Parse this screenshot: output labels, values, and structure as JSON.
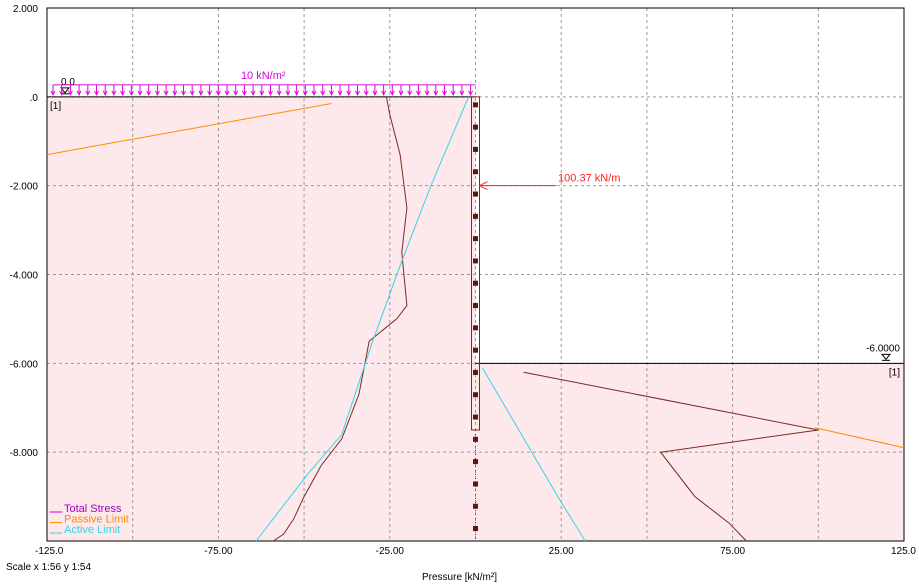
{
  "chart_data": {
    "type": "line",
    "xlabel": "Pressure [kN/m²]",
    "xlim": [
      -125,
      125
    ],
    "ylim": [
      -10,
      2
    ],
    "x_ticks": [
      {
        "v": -125,
        "label": "-125.0"
      },
      {
        "v": -75,
        "label": "-75.00"
      },
      {
        "v": -25,
        "label": "-25.00"
      },
      {
        "v": 25,
        "label": "25.00"
      },
      {
        "v": 75,
        "label": "75.00"
      },
      {
        "v": 125,
        "label": "125.0"
      }
    ],
    "x_grid": [
      -100,
      -75,
      -50,
      -25,
      0,
      25,
      50,
      75,
      100
    ],
    "y_ticks": [
      {
        "v": 2,
        "label": "2.000"
      },
      {
        "v": 0,
        "label": ".0"
      },
      {
        "v": -2,
        "label": "-2.000"
      },
      {
        "v": -4,
        "label": "-4.000"
      },
      {
        "v": -6,
        "label": "-6.000"
      },
      {
        "v": -8,
        "label": "-8.000"
      }
    ],
    "y_grid": [
      0,
      -2,
      -4,
      -6,
      -8
    ],
    "grid": true,
    "legend_position": "bottom-left",
    "colors": {
      "fill": "#fde8ec",
      "total_stress": "#7b2c1e",
      "passive": "#ff8c00",
      "active": "#33d6e8",
      "surcharge": "#e000e0",
      "force": "#ff2020",
      "wall": "#7b2c1e",
      "wall_dot": "#5a1a0a",
      "grid": "#9a9a9a"
    },
    "series": [
      {
        "name": "Total Stress",
        "color": "#7b2c1e",
        "points": [
          [
            -26,
            0
          ],
          [
            -25,
            -0.4
          ],
          [
            -22,
            -1.3
          ],
          [
            -20,
            -2.5
          ],
          [
            -21.5,
            -3.5
          ],
          [
            -20,
            -4.7
          ],
          [
            -23,
            -5.0
          ],
          [
            -31,
            -5.5
          ],
          [
            -34,
            -6.7
          ],
          [
            -39,
            -7.7
          ],
          [
            -45,
            -8.3
          ],
          [
            -50,
            -9.0
          ],
          [
            -53,
            -9.5
          ],
          [
            -56,
            -9.85
          ],
          [
            -59,
            -10
          ],
          null,
          [
            14,
            -6.2
          ],
          [
            100,
            -7.5
          ],
          [
            54,
            -8
          ],
          [
            64,
            -9
          ],
          [
            74,
            -9.6
          ],
          [
            79,
            -10
          ]
        ]
      },
      {
        "name": "Passive Limit",
        "color": "#ff8c00",
        "points": [
          [
            -125,
            -1.3
          ],
          [
            -42,
            -0.15
          ],
          null,
          [
            99,
            -7.45
          ],
          [
            125,
            -7.9
          ]
        ]
      },
      {
        "name": "Active Limit",
        "color": "#33d6e8",
        "points": [
          [
            -2,
            0
          ],
          [
            -13,
            -2
          ],
          [
            -22,
            -3.8
          ],
          [
            -30,
            -5.5
          ],
          [
            -39,
            -7.6
          ],
          [
            -49,
            -8.5
          ],
          [
            -64,
            -10
          ],
          null,
          [
            2,
            -6.1
          ],
          [
            24,
            -9
          ],
          [
            32,
            -10
          ]
        ]
      }
    ],
    "ground": [
      {
        "x0": -125,
        "x1": 0,
        "y": 0,
        "label_depth": "0.0",
        "layer": "[1]",
        "side": "left"
      },
      {
        "x0": 0,
        "x1": 125,
        "y": -6,
        "label_depth": "-6.0000",
        "layer": "[1]",
        "side": "right"
      }
    ],
    "surcharge": {
      "label": "10 kN/m²",
      "x0": -125,
      "x1": 0,
      "y": 0
    },
    "wall": {
      "x": 0,
      "top": 0,
      "pile_bottom": -7.5,
      "dotted_bottom": -10
    },
    "force": {
      "label": "100.37 kN/m",
      "value": 100.37,
      "y": -2,
      "x_from": 20,
      "x_to": 0
    }
  },
  "footer": {
    "scale": "Scale x 1:56  y 1:54"
  }
}
